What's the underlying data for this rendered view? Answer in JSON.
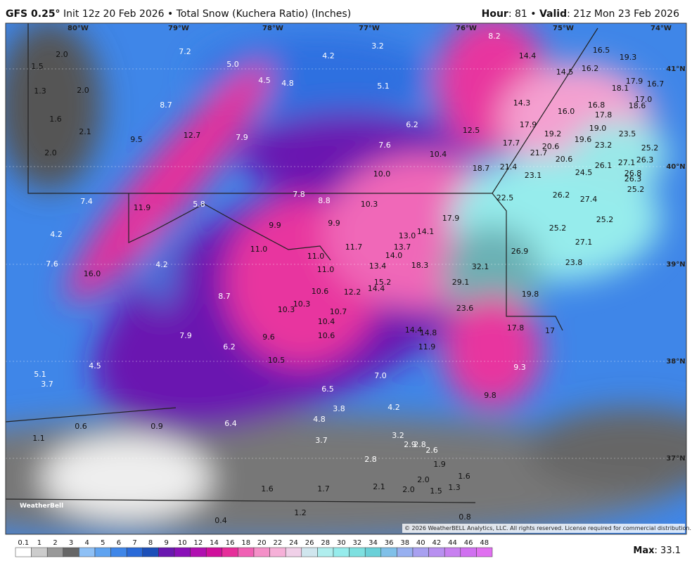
{
  "header": {
    "left_bold": "GFS 0.25°",
    "left_rest": "Init 12z 20 Feb 2026 • Total Snow (Kuchera Ratio) (Inches)",
    "right": [
      "Hour",
      ": 81 • ",
      "Valid",
      ": 21z Mon 23 Feb 2026"
    ]
  },
  "lon_labels": [
    "80°W",
    "79°W",
    "78°W",
    "77°W",
    "76°W",
    "75°W",
    "74°W"
  ],
  "lat_labels": [
    "41°N",
    "40°N",
    "39°N",
    "38°N",
    "37°N"
  ],
  "map_labels": [
    "2.0",
    "1.5",
    "1.3",
    "2.0",
    "1.6",
    "2.1",
    "2.0",
    "7.2",
    "5.0",
    "4.5",
    "4.8",
    "4.2",
    "3.2",
    "5.1",
    "8.2",
    "14.4",
    "16.5",
    "19.3",
    "14.5",
    "16.2",
    "17.9",
    "18.1",
    "16.7",
    "8.7",
    "14.3",
    "16.8",
    "16.0",
    "17.8",
    "18.6",
    "17.0",
    "9.5",
    "12.7",
    "7.9",
    "6.2",
    "12.5",
    "17.9",
    "19.2",
    "19.0",
    "23.5",
    "7.6",
    "10.4",
    "17.7",
    "20.6",
    "19.6",
    "23.2",
    "25.2",
    "21.7",
    "20.6",
    "27.1",
    "26.3",
    "10.0",
    "18.7",
    "21.4",
    "26.1",
    "24.5",
    "26.8",
    "23.1",
    "26.3",
    "25.2",
    "7.4",
    "11.9",
    "5.8",
    "7.8",
    "8.8",
    "10.3",
    "22.5",
    "26.2",
    "27.4",
    "9.9",
    "9.9",
    "17.9",
    "13.0",
    "14.1",
    "25.2",
    "25.2",
    "4.2",
    "11.0",
    "11.7",
    "13.7",
    "14.0",
    "27.1",
    "26.9",
    "7.6",
    "16.0",
    "4.2",
    "11.0",
    "13.4",
    "18.3",
    "32.1",
    "23.8",
    "11.0",
    "15.2",
    "14.4",
    "29.1",
    "8.7",
    "10.6",
    "12.2",
    "19.8",
    "10.3",
    "10.3",
    "10.7",
    "23.6",
    "10.4",
    "14.4",
    "14.8",
    "17.8",
    "17",
    "7.9",
    "9.6",
    "10.6",
    "11.9",
    "6.2",
    "10.5",
    "9.3",
    "5.1",
    "4.5",
    "7.0",
    "3.7",
    "6.5",
    "9.8",
    "3.8",
    "4.2",
    "4.8",
    "6.4",
    "0.6",
    "0.9",
    "1.1",
    "3.2",
    "3.7",
    "2.9",
    "2.8",
    "2.6",
    "2.8",
    "1.9",
    "1.6",
    "2.0",
    "1.6",
    "1.7",
    "2.1",
    "2.0",
    "1.5",
    "1.3",
    "1.2",
    "0.4",
    "0.8"
  ],
  "logo": "WeatherBell",
  "copyright": "© 2026 WeatherBELL Analytics, LLC. All rights reserved. License required for commercial distribution.",
  "colorbar_ticks": [
    "0.1",
    "1",
    "2",
    "3",
    "4",
    "5",
    "6",
    "7",
    "8",
    "9",
    "10",
    "12",
    "14",
    "16",
    "18",
    "20",
    "22",
    "24",
    "26",
    "28",
    "30",
    "32",
    "34",
    "36",
    "38",
    "40",
    "42",
    "44",
    "46",
    "48"
  ],
  "max": {
    "label": "Max",
    "value": ": 33.1"
  }
}
